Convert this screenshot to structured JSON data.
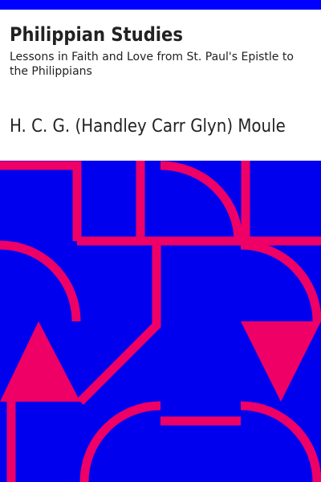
{
  "book": {
    "title": "Philippian Studies",
    "subtitle": "Lessons in Faith and Love from St. Paul's Epistle to the Philippians",
    "author": "H. C. G. (Handley Carr Glyn) Moule"
  },
  "colors": {
    "band": "#0000ff",
    "background": "#0000ee",
    "accent": "#ee0066",
    "text": "#222222"
  }
}
